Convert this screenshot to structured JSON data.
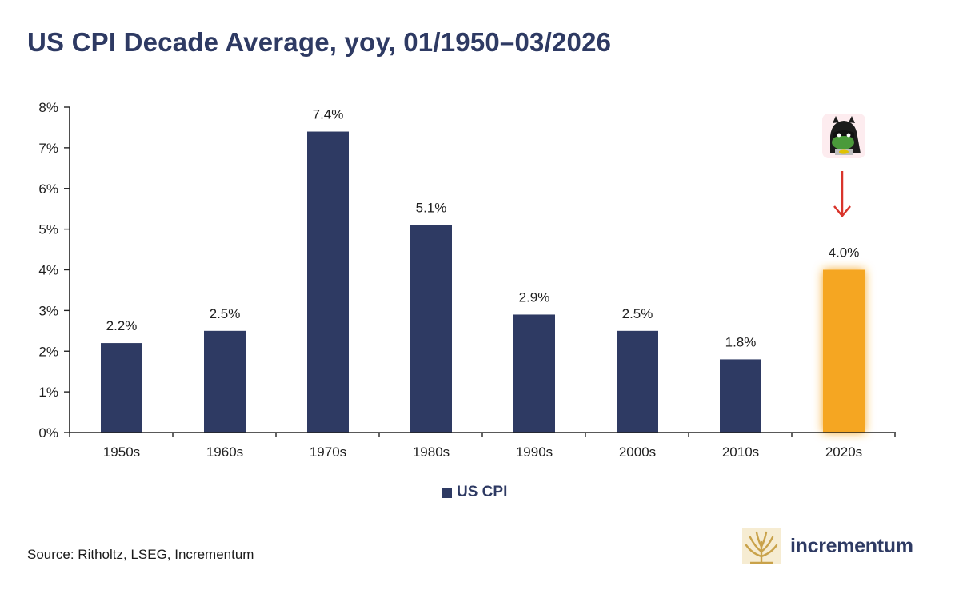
{
  "title": "US CPI Decade Average, yoy, 01/1950–03/2026",
  "source": "Source: Ritholtz, LSEG, Incrementum",
  "logo": {
    "text": "incrementum",
    "icon": "tree-icon"
  },
  "legend": {
    "label": "US CPI",
    "position": "bottom-center"
  },
  "colors": {
    "bar": "#2e3a63",
    "highlight": "#f5a623",
    "arrow": "#d9342b",
    "title": "#2e3a63"
  },
  "chart_data": {
    "type": "bar",
    "title": "US CPI Decade Average, yoy, 01/1950–03/2026",
    "categories": [
      "1950s",
      "1960s",
      "1970s",
      "1980s",
      "1990s",
      "2000s",
      "2010s",
      "2020s"
    ],
    "series": [
      {
        "name": "US CPI",
        "values": [
          2.2,
          2.5,
          7.4,
          5.1,
          2.9,
          2.5,
          1.8,
          4.0
        ]
      }
    ],
    "data_labels": [
      "2.2%",
      "2.5%",
      "7.4%",
      "5.1%",
      "2.9%",
      "2.5%",
      "1.8%",
      "4.0%"
    ],
    "y_ticks": [
      "0%",
      "1%",
      "2%",
      "3%",
      "4%",
      "5%",
      "6%",
      "7%",
      "8%"
    ],
    "ylim": [
      0,
      8
    ],
    "grid": false,
    "highlight_index": 7,
    "annotation": {
      "target": "2020s",
      "marker": "down-arrow",
      "icon": "masked-frog-meme"
    }
  }
}
